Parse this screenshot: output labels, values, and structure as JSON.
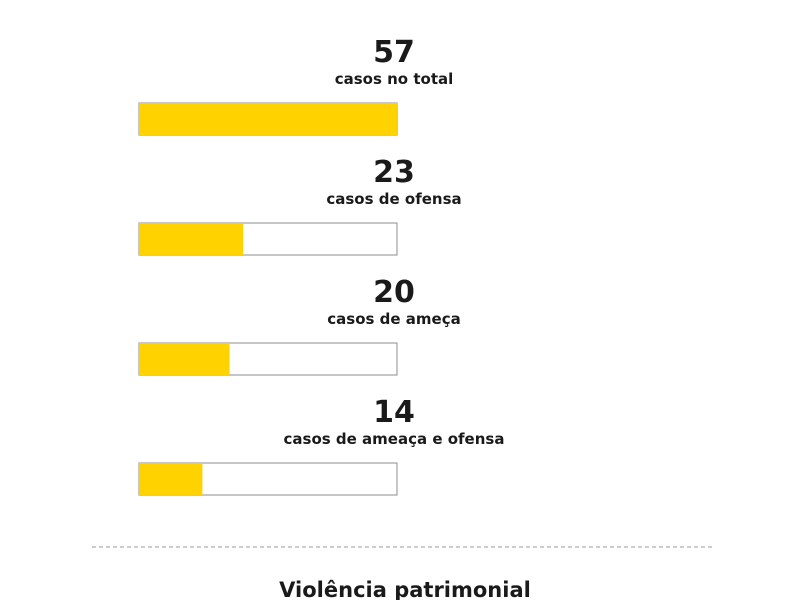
{
  "chart_data": {
    "type": "bar",
    "orientation": "horizontal",
    "max": 57,
    "bar_color": "#FFD200",
    "items": [
      {
        "value": 57,
        "label": "casos no total"
      },
      {
        "value": 23,
        "label": "casos de ofensa"
      },
      {
        "value": 20,
        "label": "casos de ameça"
      },
      {
        "value": 14,
        "label": "casos de ameaça e ofensa"
      }
    ]
  },
  "next_section": {
    "title": "Violência patrimonial"
  }
}
